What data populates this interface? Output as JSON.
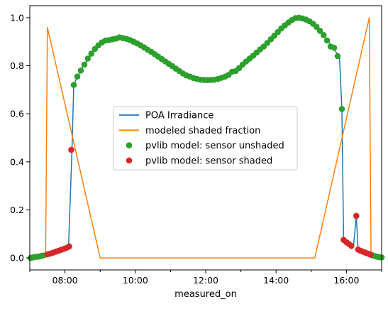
{
  "chart_data": {
    "type": "line",
    "xlabel": "measured_on",
    "ylabel": "",
    "title": "",
    "xlim": [
      7.0,
      17.0
    ],
    "ylim": [
      -0.05,
      1.05
    ],
    "x_ticks": [
      {
        "value": 8,
        "label": "08:00"
      },
      {
        "value": 10,
        "label": "10:00"
      },
      {
        "value": 12,
        "label": "12:00"
      },
      {
        "value": 14,
        "label": "14:00"
      },
      {
        "value": 16,
        "label": "16:00"
      }
    ],
    "y_ticks": [
      {
        "value": 0.0,
        "label": "0.0"
      },
      {
        "value": 0.2,
        "label": "0.2"
      },
      {
        "value": 0.4,
        "label": "0.4"
      },
      {
        "value": 0.6,
        "label": "0.6"
      },
      {
        "value": 0.8,
        "label": "0.8"
      },
      {
        "value": 1.0,
        "label": "1.0"
      }
    ],
    "legend": {
      "placement": "center",
      "entries": [
        {
          "label": "POA Irradiance",
          "kind": "line",
          "color": "#1f77b4"
        },
        {
          "label": "modeled shaded fraction",
          "kind": "line",
          "color": "#ff7f0e"
        },
        {
          "label": "pvlib model: sensor unshaded",
          "kind": "marker",
          "color": "#2ca02c"
        },
        {
          "label": "pvlib model: sensor shaded",
          "kind": "marker",
          "color": "#d62728"
        }
      ]
    },
    "series": [
      {
        "name": "POA Irradiance",
        "kind": "line",
        "color": "#1f77b4",
        "points": [
          [
            7.0,
            0.0
          ],
          [
            7.4,
            0.01
          ],
          [
            7.7,
            0.025
          ],
          [
            8.0,
            0.04
          ],
          [
            8.1,
            0.048
          ],
          [
            8.2,
            0.45
          ],
          [
            8.25,
            0.72
          ],
          [
            8.35,
            0.755
          ],
          [
            8.45,
            0.78
          ],
          [
            8.55,
            0.805
          ],
          [
            8.7,
            0.84
          ],
          [
            8.9,
            0.875
          ],
          [
            9.1,
            0.9
          ],
          [
            9.3,
            0.905
          ],
          [
            9.5,
            0.915
          ],
          [
            9.7,
            0.915
          ],
          [
            9.9,
            0.905
          ],
          [
            10.1,
            0.89
          ],
          [
            10.3,
            0.875
          ],
          [
            10.5,
            0.855
          ],
          [
            10.7,
            0.835
          ],
          [
            10.9,
            0.815
          ],
          [
            11.1,
            0.795
          ],
          [
            11.3,
            0.775
          ],
          [
            11.5,
            0.76
          ],
          [
            11.7,
            0.748
          ],
          [
            11.9,
            0.742
          ],
          [
            12.1,
            0.74
          ],
          [
            12.3,
            0.742
          ],
          [
            12.5,
            0.75
          ],
          [
            12.7,
            0.765
          ],
          [
            12.9,
            0.785
          ],
          [
            13.1,
            0.81
          ],
          [
            13.3,
            0.835
          ],
          [
            13.5,
            0.86
          ],
          [
            13.7,
            0.885
          ],
          [
            13.9,
            0.915
          ],
          [
            14.1,
            0.945
          ],
          [
            14.3,
            0.97
          ],
          [
            14.5,
            0.99
          ],
          [
            14.65,
            1.0
          ],
          [
            14.8,
            0.995
          ],
          [
            15.0,
            0.98
          ],
          [
            15.2,
            0.955
          ],
          [
            15.4,
            0.92
          ],
          [
            15.6,
            0.875
          ],
          [
            15.8,
            0.84
          ],
          [
            15.87,
            0.62
          ],
          [
            15.92,
            0.075
          ],
          [
            16.0,
            0.065
          ],
          [
            16.1,
            0.055
          ],
          [
            16.2,
            0.048
          ],
          [
            16.28,
            0.175
          ],
          [
            16.33,
            0.035
          ],
          [
            16.45,
            0.028
          ],
          [
            16.6,
            0.02
          ],
          [
            16.7,
            0.012
          ],
          [
            16.8,
            0.008
          ],
          [
            17.0,
            0.002
          ]
        ]
      },
      {
        "name": "modeled shaded fraction",
        "kind": "line",
        "color": "#ff7f0e",
        "points": [
          [
            7.45,
            0.0
          ],
          [
            7.5,
            0.96
          ],
          [
            9.0,
            0.0
          ],
          [
            15.1,
            0.0
          ],
          [
            16.65,
            1.0
          ],
          [
            16.7,
            0.0
          ]
        ]
      },
      {
        "name": "pvlib model: sensor unshaded",
        "kind": "scatter",
        "color": "#2ca02c",
        "points": [
          [
            7.02,
            0.0
          ],
          [
            7.08,
            0.002
          ],
          [
            7.14,
            0.004
          ],
          [
            7.2,
            0.005
          ],
          [
            7.26,
            0.006
          ],
          [
            7.32,
            0.008
          ],
          [
            7.38,
            0.01
          ],
          [
            8.25,
            0.72
          ],
          [
            8.35,
            0.755
          ],
          [
            8.45,
            0.78
          ],
          [
            8.55,
            0.805
          ],
          [
            8.65,
            0.83
          ],
          [
            8.75,
            0.85
          ],
          [
            8.85,
            0.87
          ],
          [
            8.95,
            0.885
          ],
          [
            9.05,
            0.897
          ],
          [
            9.15,
            0.905
          ],
          [
            9.25,
            0.907
          ],
          [
            9.35,
            0.91
          ],
          [
            9.45,
            0.913
          ],
          [
            9.55,
            0.918
          ],
          [
            9.65,
            0.915
          ],
          [
            9.75,
            0.912
          ],
          [
            9.85,
            0.907
          ],
          [
            9.95,
            0.9
          ],
          [
            10.05,
            0.893
          ],
          [
            10.15,
            0.885
          ],
          [
            10.25,
            0.876
          ],
          [
            10.35,
            0.867
          ],
          [
            10.45,
            0.858
          ],
          [
            10.55,
            0.848
          ],
          [
            10.65,
            0.838
          ],
          [
            10.75,
            0.828
          ],
          [
            10.85,
            0.818
          ],
          [
            10.95,
            0.808
          ],
          [
            11.05,
            0.798
          ],
          [
            11.15,
            0.788
          ],
          [
            11.25,
            0.778
          ],
          [
            11.35,
            0.768
          ],
          [
            11.45,
            0.76
          ],
          [
            11.55,
            0.755
          ],
          [
            11.65,
            0.749
          ],
          [
            11.75,
            0.745
          ],
          [
            11.85,
            0.742
          ],
          [
            11.95,
            0.741
          ],
          [
            12.05,
            0.74
          ],
          [
            12.15,
            0.741
          ],
          [
            12.25,
            0.742
          ],
          [
            12.35,
            0.745
          ],
          [
            12.45,
            0.75
          ],
          [
            12.55,
            0.755
          ],
          [
            12.65,
            0.762
          ],
          [
            12.75,
            0.775
          ],
          [
            12.85,
            0.778
          ],
          [
            12.95,
            0.79
          ],
          [
            13.05,
            0.805
          ],
          [
            13.15,
            0.818
          ],
          [
            13.25,
            0.83
          ],
          [
            13.35,
            0.842
          ],
          [
            13.45,
            0.855
          ],
          [
            13.55,
            0.868
          ],
          [
            13.65,
            0.88
          ],
          [
            13.75,
            0.895
          ],
          [
            13.85,
            0.91
          ],
          [
            13.95,
            0.925
          ],
          [
            14.05,
            0.94
          ],
          [
            14.15,
            0.955
          ],
          [
            14.25,
            0.968
          ],
          [
            14.35,
            0.98
          ],
          [
            14.45,
            0.99
          ],
          [
            14.55,
            0.998
          ],
          [
            14.65,
            1.0
          ],
          [
            14.75,
            0.997
          ],
          [
            14.85,
            0.992
          ],
          [
            14.95,
            0.985
          ],
          [
            15.05,
            0.975
          ],
          [
            15.15,
            0.962
          ],
          [
            15.25,
            0.945
          ],
          [
            15.35,
            0.928
          ],
          [
            15.45,
            0.905
          ],
          [
            15.55,
            0.88
          ],
          [
            15.65,
            0.875
          ],
          [
            15.75,
            0.84
          ],
          [
            15.87,
            0.62
          ],
          [
            16.75,
            0.01
          ],
          [
            16.82,
            0.007
          ],
          [
            16.88,
            0.005
          ],
          [
            16.94,
            0.003
          ],
          [
            17.0,
            0.002
          ]
        ]
      },
      {
        "name": "pvlib model: sensor shaded",
        "kind": "scatter",
        "color": "#d62728",
        "points": [
          [
            7.5,
            0.015
          ],
          [
            7.58,
            0.018
          ],
          [
            7.66,
            0.022
          ],
          [
            7.74,
            0.026
          ],
          [
            7.82,
            0.03
          ],
          [
            7.9,
            0.034
          ],
          [
            7.98,
            0.038
          ],
          [
            8.06,
            0.043
          ],
          [
            8.12,
            0.048
          ],
          [
            8.18,
            0.45
          ],
          [
            15.92,
            0.075
          ],
          [
            16.0,
            0.065
          ],
          [
            16.07,
            0.058
          ],
          [
            16.14,
            0.05
          ],
          [
            16.28,
            0.175
          ],
          [
            16.33,
            0.035
          ],
          [
            16.4,
            0.03
          ],
          [
            16.47,
            0.026
          ],
          [
            16.54,
            0.022
          ],
          [
            16.61,
            0.018
          ],
          [
            16.68,
            0.014
          ]
        ]
      }
    ]
  }
}
